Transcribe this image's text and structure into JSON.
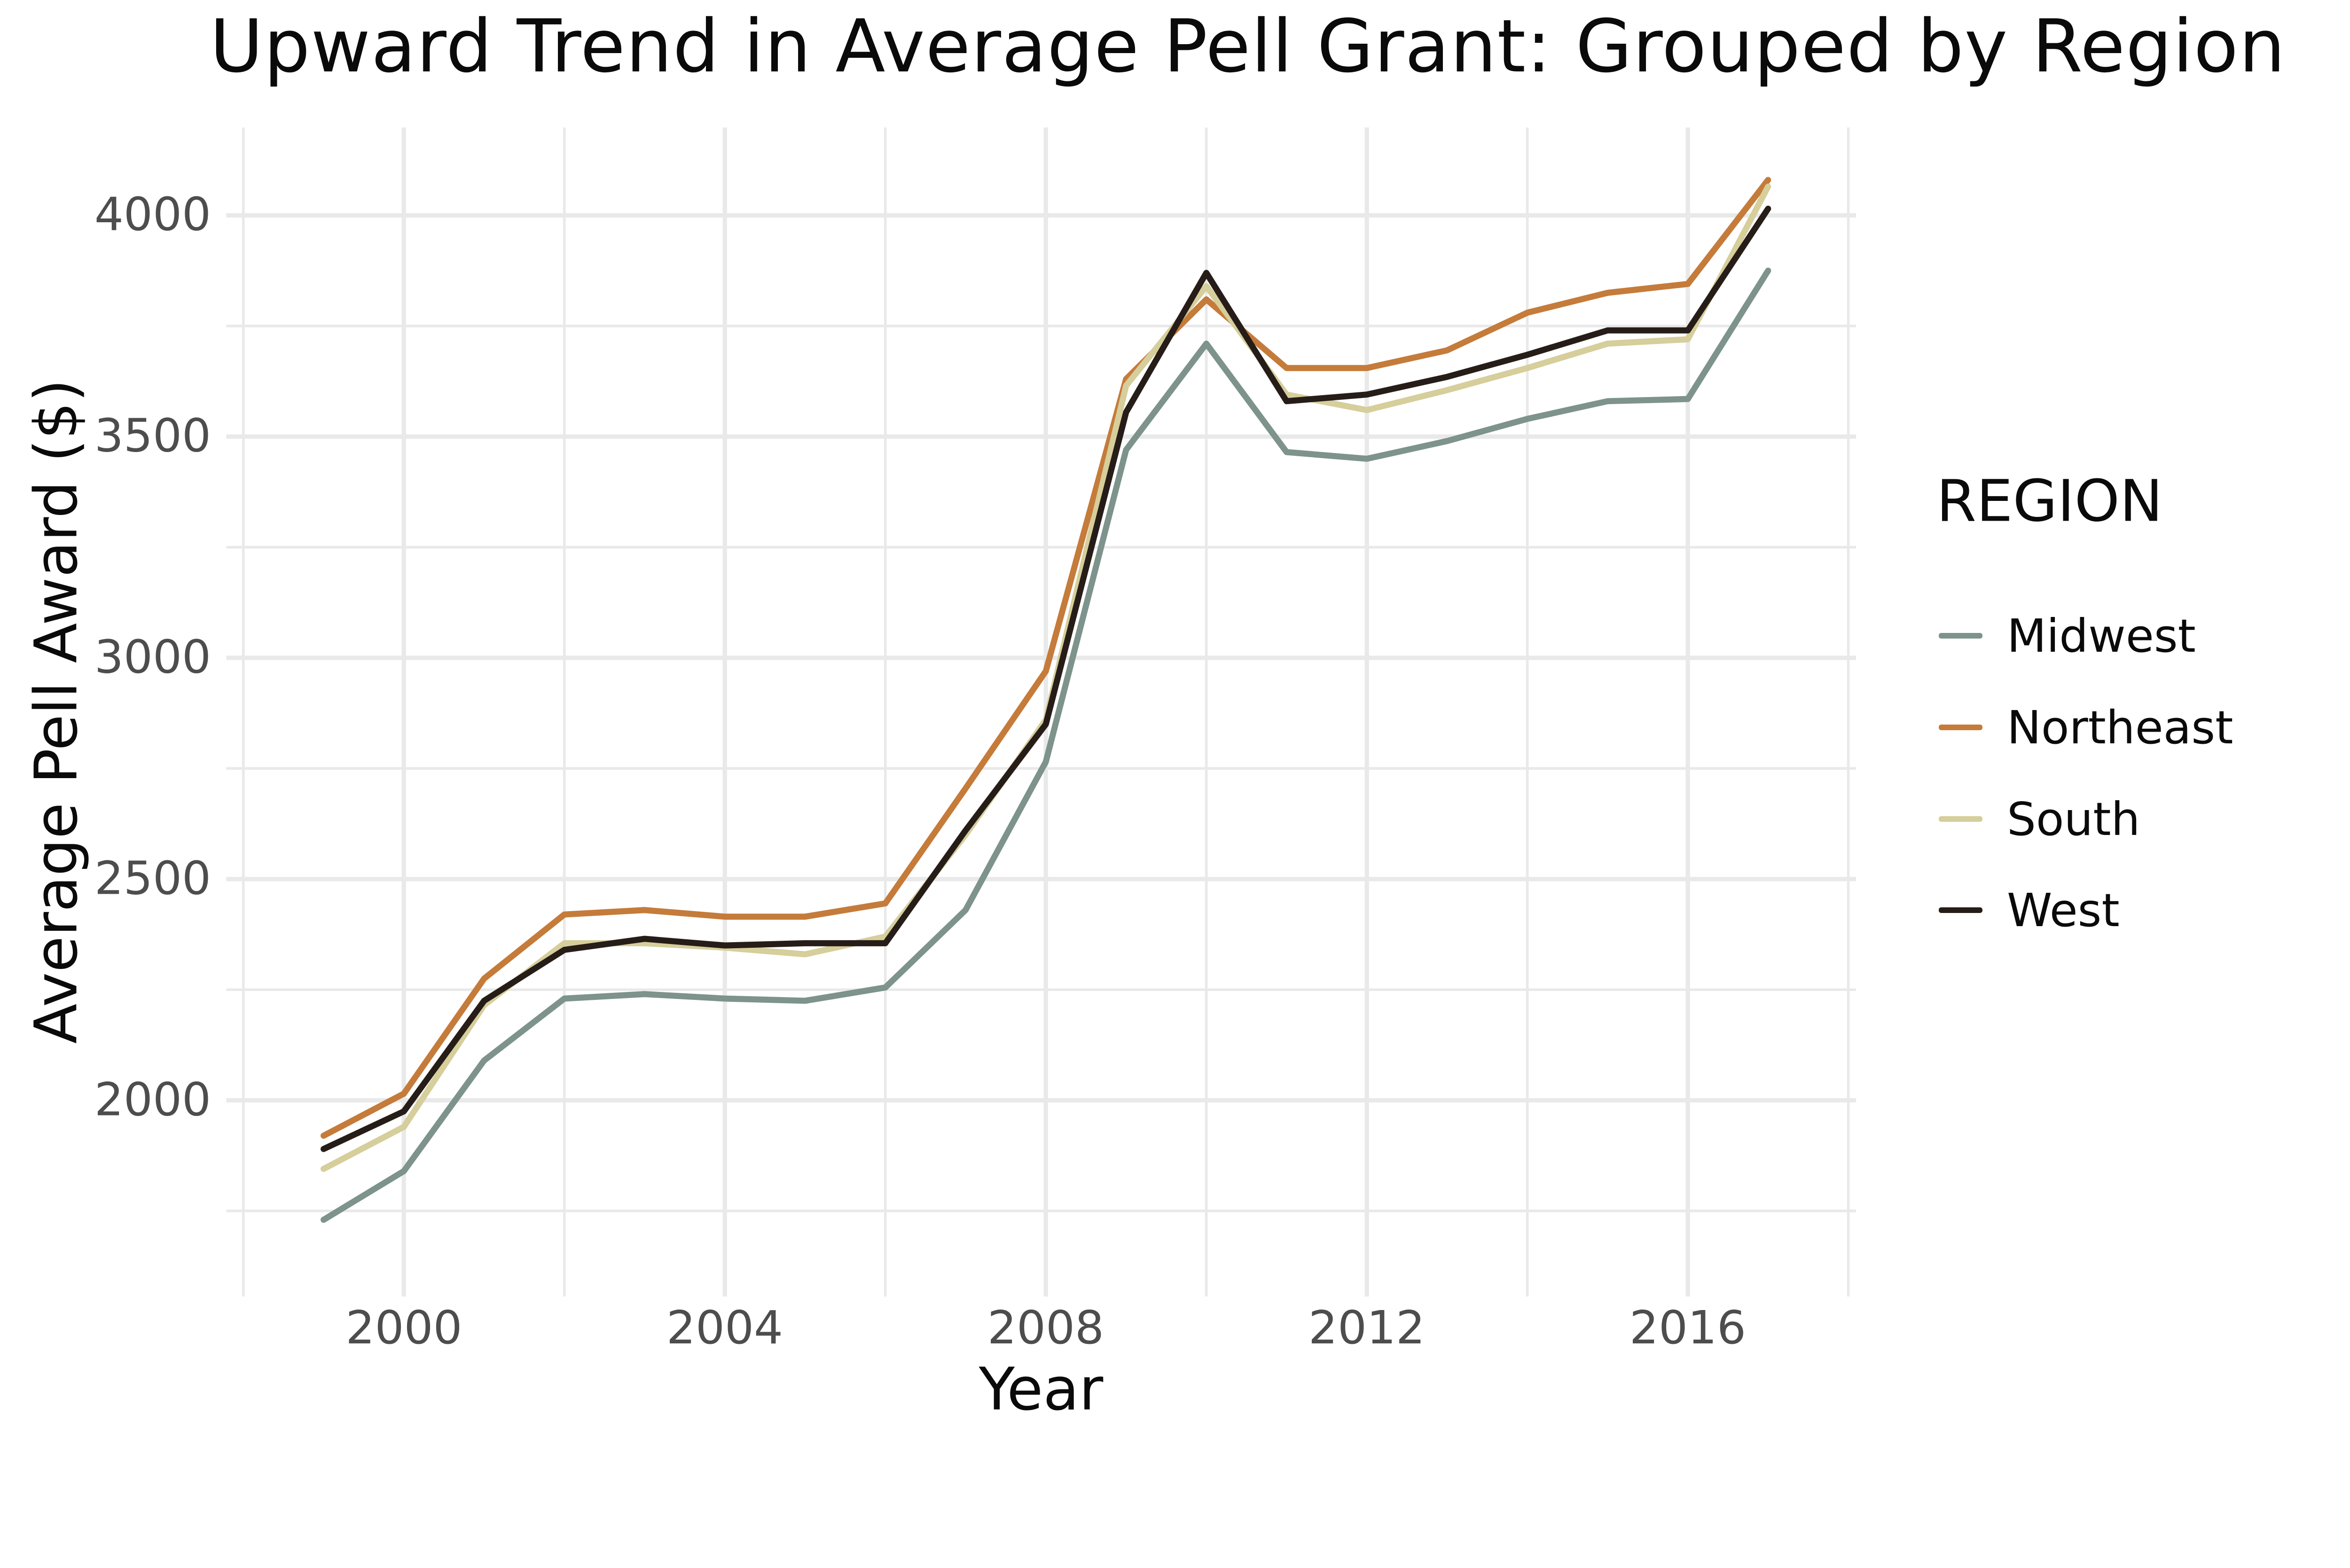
{
  "title": "Upward Trend in Average Pell Grant: Grouped by Region",
  "legend": {
    "title": "REGION",
    "position": "right"
  },
  "chart_data": {
    "type": "line",
    "title": "Upward Trend in Average Pell Grant: Grouped by Region",
    "xlabel": "Year",
    "ylabel": "Average Pell Award ($)",
    "x": [
      1999,
      2000,
      2001,
      2002,
      2003,
      2004,
      2005,
      2006,
      2007,
      2008,
      2009,
      2010,
      2011,
      2012,
      2013,
      2014,
      2015,
      2016,
      2017
    ],
    "series": [
      {
        "name": "Midwest",
        "color": "#7d938c",
        "values": [
          1730,
          1840,
          2090,
          2230,
          2240,
          2230,
          2225,
          2255,
          2430,
          2765,
          3470,
          3710,
          3465,
          3450,
          3490,
          3540,
          3580,
          3585,
          3875
        ]
      },
      {
        "name": "Northeast",
        "color": "#c57b3a",
        "values": [
          1920,
          2015,
          2275,
          2420,
          2430,
          2415,
          2415,
          2445,
          2705,
          2970,
          3630,
          3810,
          3655,
          3655,
          3695,
          3780,
          3825,
          3845,
          4080
        ]
      },
      {
        "name": "South",
        "color": "#d6ce9b",
        "values": [
          1845,
          1940,
          2215,
          2355,
          2355,
          2345,
          2330,
          2370,
          2600,
          2860,
          3615,
          3840,
          3595,
          3560,
          3605,
          3655,
          3710,
          3720,
          4065
        ]
      },
      {
        "name": "West",
        "color": "#261d18",
        "values": [
          1890,
          1975,
          2225,
          2340,
          2365,
          2350,
          2355,
          2355,
          2610,
          2850,
          3555,
          3870,
          3580,
          3595,
          3635,
          3685,
          3740,
          3740,
          4015
        ]
      }
    ],
    "xticks": [
      2000,
      2004,
      2008,
      2012,
      2016
    ],
    "yticks": [
      2000,
      2500,
      3000,
      3500,
      4000
    ],
    "xticks_minor": [
      1998,
      2002,
      2006,
      2010,
      2014,
      2018
    ],
    "yticks_minor": [
      1750,
      2250,
      2750,
      3250,
      3750
    ],
    "ylim": [
      1557,
      4199
    ],
    "xlim": [
      1997.8,
      2018.1
    ],
    "grid": "on",
    "grid_color": "#e9e9e9",
    "background_color": "#ffffff",
    "tick_label_color": "#4d4d4d",
    "text_color": "#0a0a0a",
    "legend_position": "right"
  }
}
